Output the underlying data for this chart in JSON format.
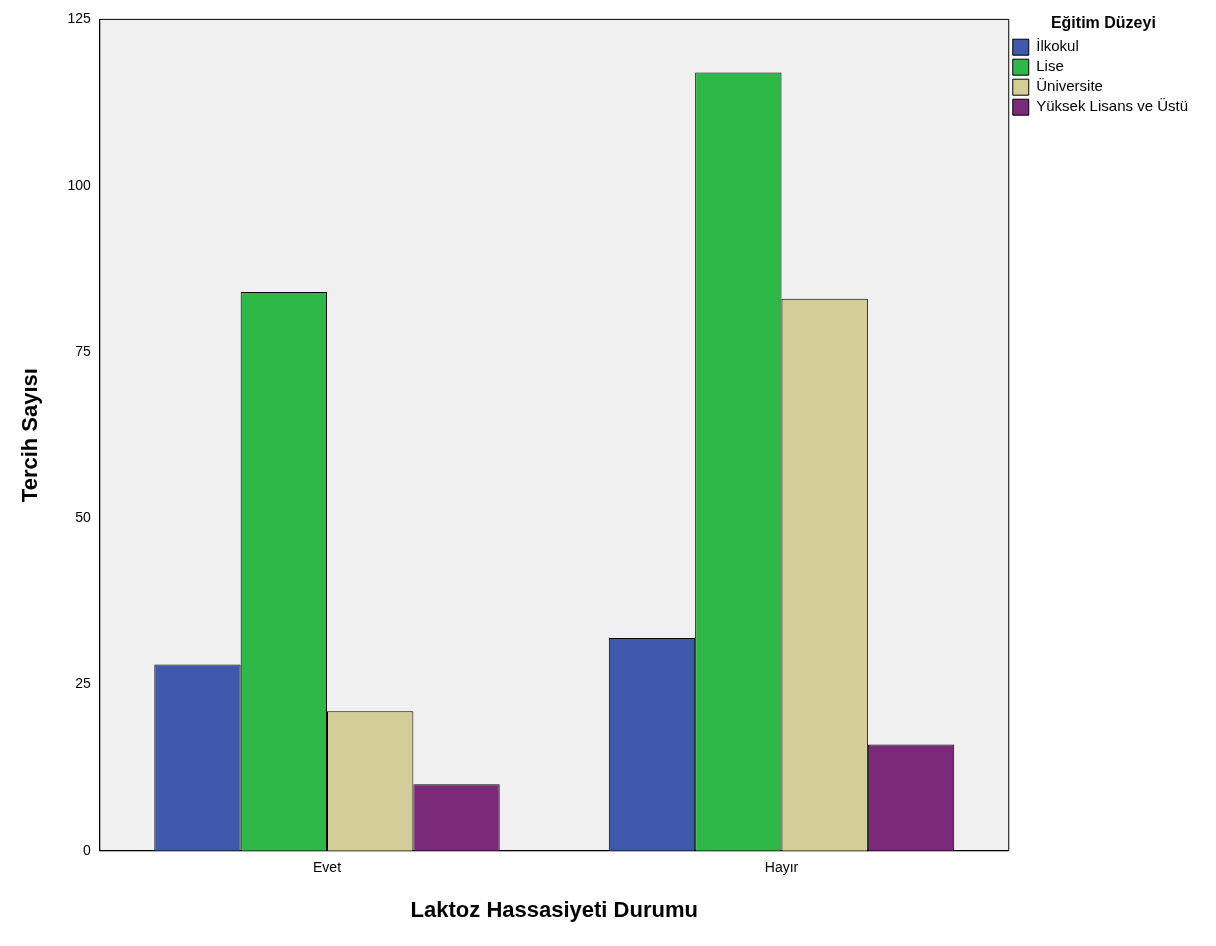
{
  "chart_data": {
    "type": "bar",
    "xlabel": "Laktoz Hassasiyeti Durumu",
    "ylabel": "Tercih Sayısı",
    "legend_title": "Eğitim Düzeyi",
    "categories": [
      "Evet",
      "Hayır"
    ],
    "series": [
      {
        "name": "İlkokul",
        "color": "#3e58ac",
        "values": [
          28,
          32
        ]
      },
      {
        "name": "Lise",
        "color": "#2eb848",
        "values": [
          84,
          117
        ]
      },
      {
        "name": "Üniversite",
        "color": "#d3ce97",
        "values": [
          21,
          83
        ]
      },
      {
        "name": "Yüksek Lisans ve Üstü",
        "color": "#7b2a7a",
        "values": [
          10,
          16
        ]
      }
    ],
    "ylim": [
      0,
      125
    ],
    "yticks": [
      0,
      25,
      50,
      75,
      100,
      125
    ],
    "grid": false,
    "legend": "top right"
  }
}
